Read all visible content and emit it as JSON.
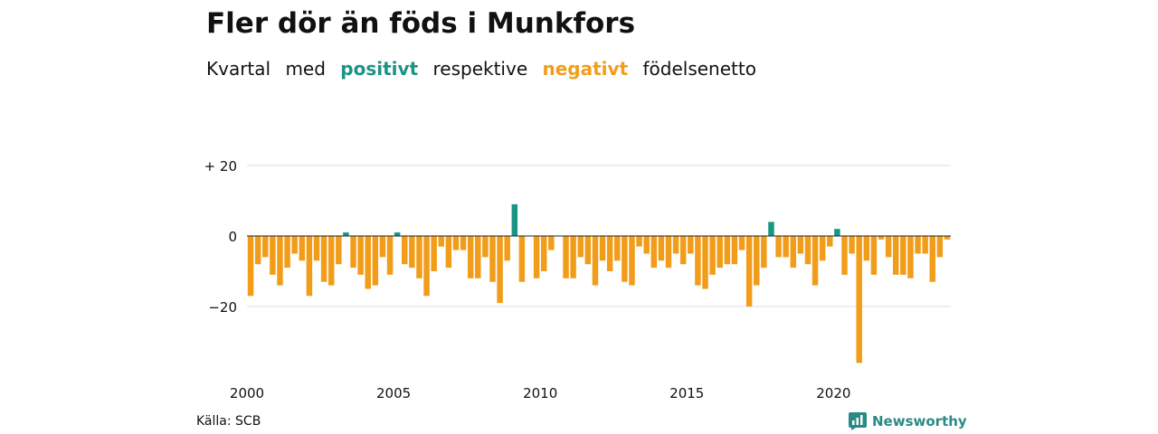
{
  "title": "Fler dör än föds i Munkfors",
  "subtitle": {
    "w1": "Kvartal",
    "w2": "med",
    "positive": "positivt",
    "w3": "respektive",
    "negative": "negativt",
    "w4": "födelsenetto"
  },
  "colors": {
    "positive": "#1a9485",
    "negative": "#f29d1a",
    "grid": "#dddddd",
    "zero_line": "#222222"
  },
  "source": "Källa: SCB",
  "brand": "Newsworthy",
  "chart_data": {
    "type": "bar",
    "title": "Fler dör än föds i Munkfors",
    "subtitle": "Kvartal med positivt respektive negativt födelsenetto",
    "xlabel": "",
    "ylabel": "",
    "ylim": [
      -36,
      20
    ],
    "y_ticks": [
      {
        "value": 20,
        "label": "+ 20"
      },
      {
        "value": 0,
        "label": "0"
      },
      {
        "value": -20,
        "label": "−20"
      }
    ],
    "x_ticks": [
      "2000",
      "2005",
      "2010",
      "2015",
      "2020"
    ],
    "x_start_year": 2000,
    "periods_per_year": 4,
    "grid": true,
    "values": [
      -17,
      -8,
      -6,
      -11,
      -14,
      -9,
      -5,
      -7,
      -17,
      -7,
      -13,
      -14,
      -8,
      1,
      -9,
      -11,
      -15,
      -14,
      -6,
      -11,
      1,
      -8,
      -9,
      -12,
      -17,
      -10,
      -3,
      -9,
      -4,
      -4,
      -12,
      -12,
      -6,
      -13,
      -19,
      -7,
      9,
      -13,
      0,
      -12,
      -10,
      -4,
      0,
      -12,
      -12,
      -6,
      -8,
      -14,
      -7,
      -10,
      -7,
      -13,
      -14,
      -3,
      -5,
      -9,
      -7,
      -9,
      -5,
      -8,
      -5,
      -14,
      -15,
      -11,
      -9,
      -8,
      -8,
      -4,
      -20,
      -14,
      -9,
      4,
      -6,
      -6,
      -9,
      -5,
      -8,
      -14,
      -7,
      -3,
      2,
      -11,
      -5,
      -36,
      -7,
      -11,
      -1,
      -6,
      -11,
      -11,
      -12,
      -5,
      -5,
      -13,
      -6,
      -1
    ]
  }
}
